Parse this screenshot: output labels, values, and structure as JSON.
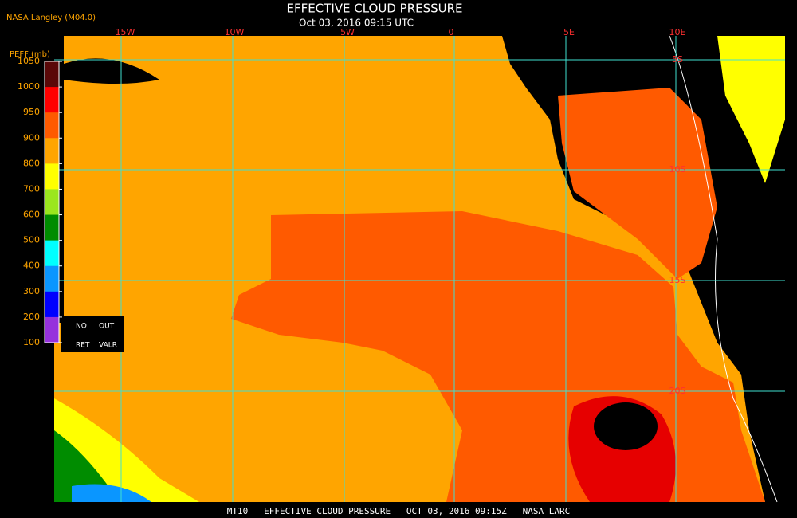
{
  "header": {
    "title": "EFFECTIVE CLOUD PRESSURE",
    "subtitle": "Oct 03, 2016 09:15 UTC",
    "source": "NASA Langley (M04.0)"
  },
  "map": {
    "lon_labels": [
      "15W",
      "10W",
      "5W",
      "0",
      "5E",
      "10E"
    ],
    "lat_labels": [
      "5S",
      "10S",
      "15S",
      "20S"
    ]
  },
  "legend": {
    "title": "PEFF (mb)",
    "ticks": [
      1050,
      1000,
      950,
      900,
      800,
      700,
      600,
      500,
      400,
      300,
      200,
      100
    ],
    "colors": [
      "#5a0808",
      "#ff0000",
      "#ff5a00",
      "#ffa500",
      "#ffff00",
      "#9be61e",
      "#008c00",
      "#00ffff",
      "#0a96ff",
      "#0000ff",
      "#9632dc"
    ],
    "flags": [
      "NO",
      "OUT",
      "RET",
      "VALR"
    ]
  },
  "footer": {
    "caption": "MT10   EFFECTIVE CLOUD PRESSURE   OCT 03, 2016 09:15Z   NASA LARC"
  }
}
